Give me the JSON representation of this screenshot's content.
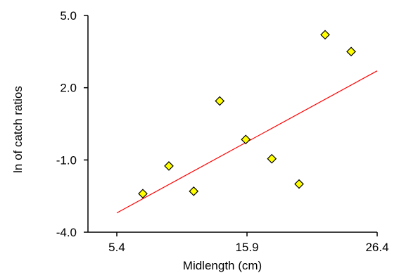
{
  "chart_data": {
    "type": "scatter",
    "title": "",
    "xlabel": "Midlength (cm)",
    "ylabel": "ln of catch ratios",
    "xlim": [
      5.4,
      26.4
    ],
    "ylim": [
      -4.0,
      5.0
    ],
    "xticks": [
      5.4,
      15.9,
      26.4
    ],
    "xtick_labels": [
      "5.4",
      "15.9",
      "26.4"
    ],
    "yticks": [
      5.0,
      2.0,
      -1.0,
      -4.0
    ],
    "ytick_labels": [
      "5.0",
      "2.0",
      "-1.0",
      "-4.0"
    ],
    "grid": false,
    "series": [
      {
        "points": [
          {
            "x": 7.5,
            "y": -2.4
          },
          {
            "x": 9.6,
            "y": -1.25
          },
          {
            "x": 11.6,
            "y": -2.3
          },
          {
            "x": 13.7,
            "y": 1.45
          },
          {
            "x": 15.8,
            "y": -0.15
          },
          {
            "x": 17.9,
            "y": -0.95
          },
          {
            "x": 20.1,
            "y": -2.0
          },
          {
            "x": 22.2,
            "y": 4.2
          },
          {
            "x": 24.3,
            "y": 3.5
          }
        ]
      }
    ],
    "trendline": {
      "x": [
        5.4,
        26.4
      ],
      "y": [
        -3.2,
        2.7
      ]
    },
    "colors": {
      "marker_fill": "#ffff00",
      "marker_stroke": "#000000",
      "trendline": "#ff0000",
      "axis": "#000000"
    }
  }
}
